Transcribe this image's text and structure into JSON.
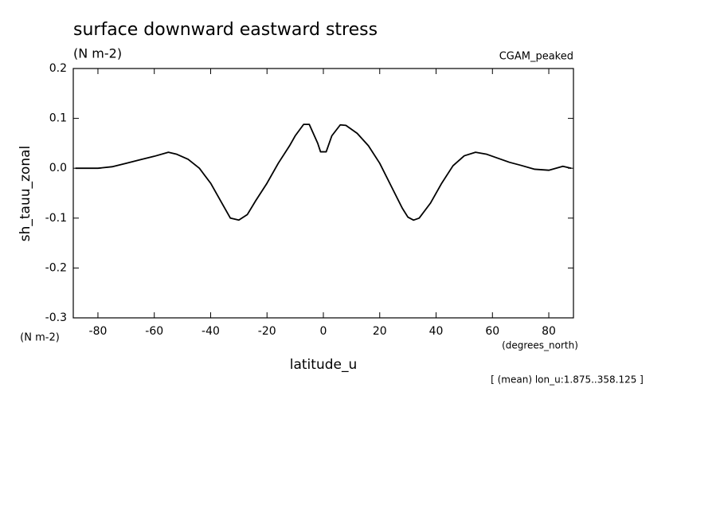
{
  "chart_data": {
    "type": "line",
    "title": "surface downward eastward stress",
    "subtitle": "(N m-2)",
    "dataset_label": "CGAM_peaked",
    "y_label": "sh_tauu_zonal",
    "y_units": "(N m-2)",
    "x_label": "latitude_u",
    "x_units": "(degrees_north)",
    "footnote": "[ (mean) lon_u:1.875..358.125 ]",
    "xlim": [
      -88.75,
      88.75
    ],
    "ylim": [
      -0.3,
      0.2
    ],
    "xticks": [
      -80,
      -60,
      -40,
      -20,
      0,
      20,
      40,
      60,
      80
    ],
    "yticks": [
      -0.3,
      -0.2,
      -0.1,
      {
        "value": 0,
        "label": "0.0"
      },
      0.1,
      0.2
    ],
    "color": "#000000",
    "x": [
      -88,
      -80,
      -75,
      -70,
      -65,
      -60,
      -55,
      -52,
      -48,
      -44,
      -40,
      -36,
      -33,
      -30,
      -27,
      -24,
      -20,
      -16,
      -12,
      -10,
      -7,
      -5,
      -2,
      -1,
      1,
      3,
      6,
      8,
      12,
      16,
      20,
      24,
      28,
      30,
      32,
      34,
      38,
      42,
      46,
      50,
      54,
      58,
      62,
      66,
      70,
      75,
      80,
      85,
      88
    ],
    "values": [
      0,
      0,
      0.003,
      0.01,
      0.017,
      0.024,
      0.032,
      0.028,
      0.018,
      0,
      -0.03,
      -0.07,
      -0.1,
      -0.104,
      -0.093,
      -0.065,
      -0.03,
      0.01,
      0.045,
      0.065,
      0.088,
      0.088,
      0.05,
      0.033,
      0.033,
      0.065,
      0.087,
      0.086,
      0.07,
      0.045,
      0.01,
      -0.035,
      -0.08,
      -0.098,
      -0.104,
      -0.1,
      -0.07,
      -0.03,
      0.005,
      0.025,
      0.032,
      0.028,
      0.02,
      0.012,
      0.006,
      -0.002,
      -0.004,
      0.004,
      0
    ]
  }
}
